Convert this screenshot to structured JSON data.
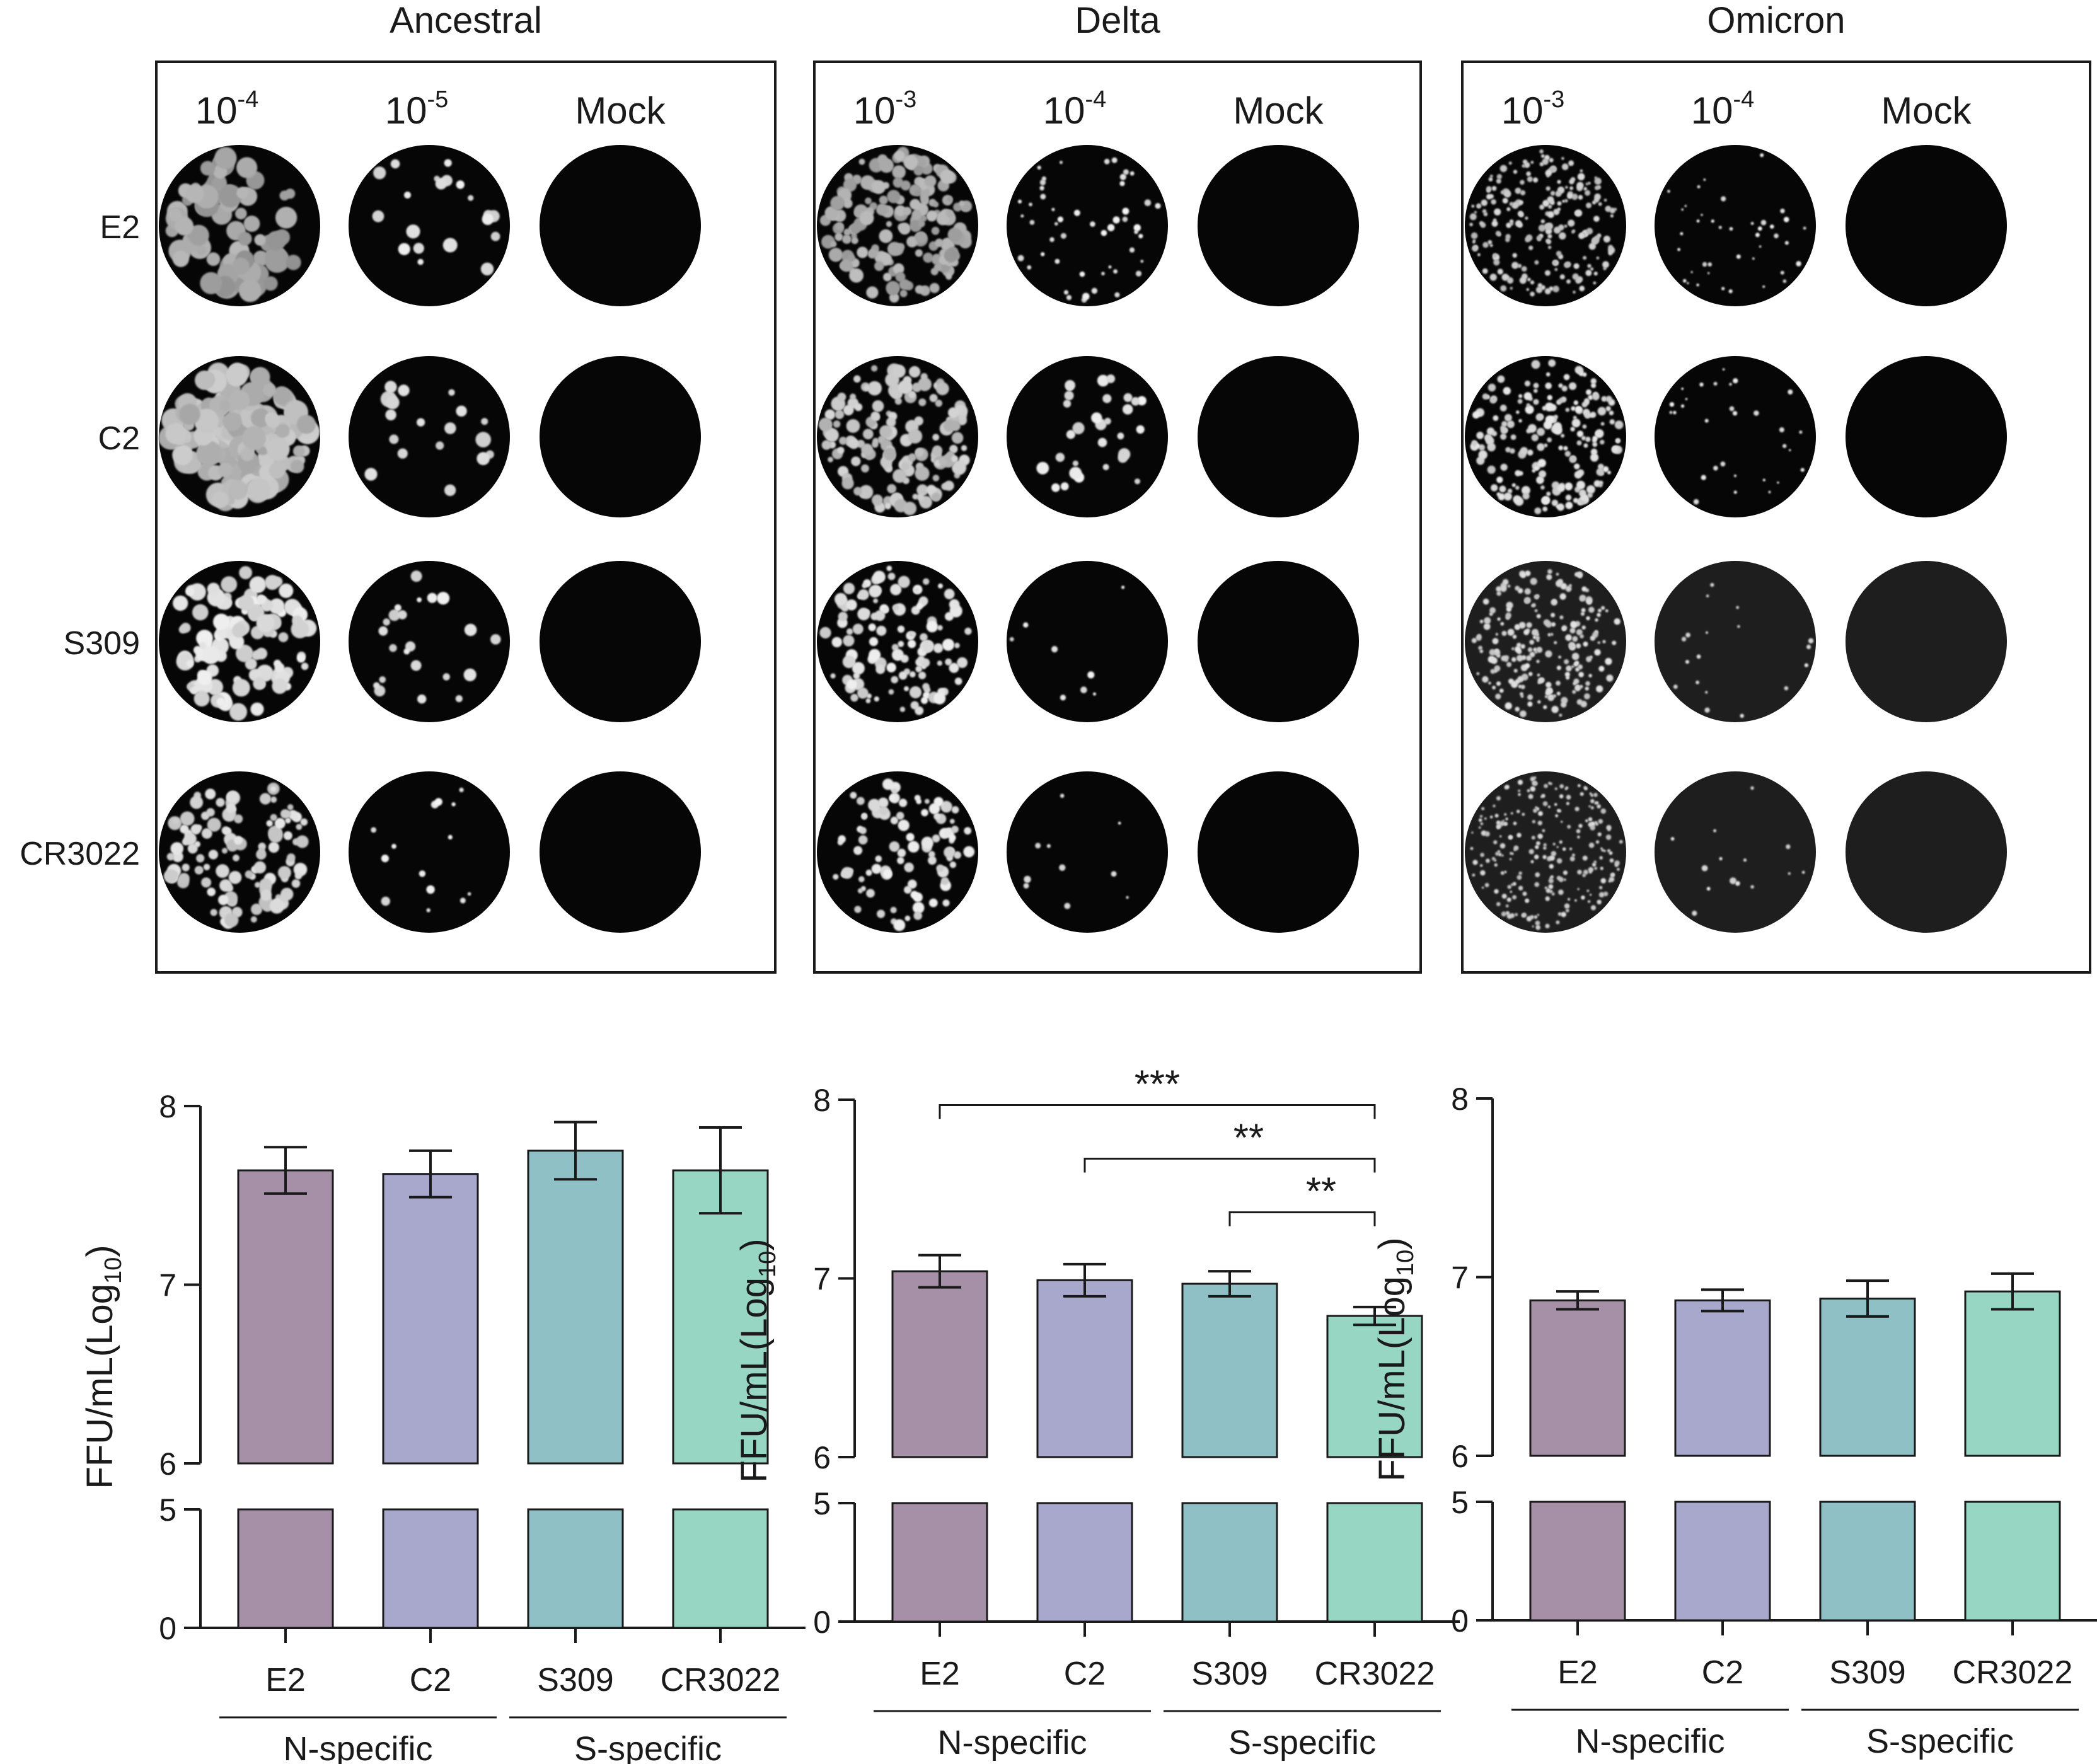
{
  "antibodies": [
    "E2",
    "C2",
    "S309",
    "CR3022"
  ],
  "colors": {
    "E2": "#a690a8",
    "C2": "#a8a8cc",
    "S309": "#8fc0c6",
    "CR3022": "#96d6c2",
    "well_background": "#060606",
    "axis": "#1a1a1a"
  },
  "wells": {
    "mock_label": "Mock",
    "panels": [
      {
        "variant": "Ancestral",
        "dilutions": [
          {
            "base": "10",
            "exp": "-4"
          },
          {
            "base": "10",
            "exp": "-5"
          }
        ],
        "foci": {
          "E2": [
            {
              "count": 70,
              "size": 14,
              "tone": 185
            },
            {
              "count": 20,
              "size": 8,
              "tone": 240
            }
          ],
          "C2": [
            {
              "count": 140,
              "size": 14,
              "tone": 205
            },
            {
              "count": 18,
              "size": 9,
              "tone": 240
            }
          ],
          "S309": [
            {
              "count": 110,
              "size": 10,
              "tone": 240
            },
            {
              "count": 22,
              "size": 7,
              "tone": 240
            }
          ],
          "CR3022": [
            {
              "count": 115,
              "size": 8,
              "tone": 230
            },
            {
              "count": 14,
              "size": 5,
              "tone": 245
            }
          ]
        }
      },
      {
        "variant": "Delta",
        "dilutions": [
          {
            "base": "10",
            "exp": "-3"
          },
          {
            "base": "10",
            "exp": "-4"
          }
        ],
        "foci": {
          "E2": [
            {
              "count": 170,
              "size": 8,
              "tone": 190
            },
            {
              "count": 50,
              "size": 4,
              "tone": 245
            }
          ],
          "C2": [
            {
              "count": 150,
              "size": 8,
              "tone": 215
            },
            {
              "count": 30,
              "size": 7,
              "tone": 245
            }
          ],
          "S309": [
            {
              "count": 120,
              "size": 7,
              "tone": 240
            },
            {
              "count": 8,
              "size": 4,
              "tone": 245
            }
          ],
          "CR3022": [
            {
              "count": 90,
              "size": 7,
              "tone": 240
            },
            {
              "count": 10,
              "size": 4,
              "tone": 245
            }
          ]
        }
      },
      {
        "variant": "Omicron",
        "dilutions": [
          {
            "base": "10",
            "exp": "-3"
          },
          {
            "base": "10",
            "exp": "-4"
          }
        ],
        "foci": {
          "E2": [
            {
              "count": 220,
              "size": 4,
              "tone": 220
            },
            {
              "count": 40,
              "size": 3,
              "tone": 245
            }
          ],
          "C2": [
            {
              "count": 200,
              "size": 5,
              "tone": 235
            },
            {
              "count": 30,
              "size": 3,
              "tone": 245
            }
          ],
          "S309": [
            {
              "count": 220,
              "size": 4,
              "tone": 230
            },
            {
              "count": 18,
              "size": 3,
              "tone": 235
            }
          ],
          "CR3022": [
            {
              "count": 240,
              "size": 3,
              "tone": 225
            },
            {
              "count": 14,
              "size": 4,
              "tone": 240
            }
          ]
        }
      }
    ]
  },
  "chart_data": [
    {
      "type": "bar",
      "variant": "Ancestral",
      "categories": [
        "E2",
        "C2",
        "S309",
        "CR3022"
      ],
      "values": [
        7.64,
        7.62,
        7.75,
        7.64
      ],
      "error": [
        0.13,
        0.13,
        0.16,
        0.24
      ],
      "ylabel_main": "FFU/mL(Log",
      "ylabel_sub": "10",
      "ylabel_tail": ")",
      "ylim": [
        0,
        8
      ],
      "axis_break": [
        5,
        6
      ],
      "yticks": [
        0,
        5,
        6,
        7,
        8
      ],
      "groups": [
        {
          "label": "N-specific",
          "members": [
            "E2",
            "C2"
          ]
        },
        {
          "label": "S-specific",
          "members": [
            "S309",
            "CR3022"
          ]
        }
      ],
      "significance": []
    },
    {
      "type": "bar",
      "variant": "Delta",
      "categories": [
        "E2",
        "C2",
        "S309",
        "CR3022"
      ],
      "values": [
        7.04,
        6.99,
        6.97,
        6.79
      ],
      "error": [
        0.09,
        0.09,
        0.07,
        0.05
      ],
      "ylabel_main": "FFU/mL(Log",
      "ylabel_sub": "10",
      "ylabel_tail": ")",
      "ylim": [
        0,
        8
      ],
      "axis_break": [
        5,
        6
      ],
      "yticks": [
        0,
        5,
        6,
        7,
        8
      ],
      "groups": [
        {
          "label": "N-specific",
          "members": [
            "E2",
            "C2"
          ]
        },
        {
          "label": "S-specific",
          "members": [
            "S309",
            "CR3022"
          ]
        }
      ],
      "significance": [
        {
          "from": "E2",
          "to": "CR3022",
          "label": "***"
        },
        {
          "from": "C2",
          "to": "CR3022",
          "label": "**"
        },
        {
          "from": "S309",
          "to": "CR3022",
          "label": "**"
        }
      ]
    },
    {
      "type": "bar",
      "variant": "Omicron",
      "categories": [
        "E2",
        "C2",
        "S309",
        "CR3022"
      ],
      "values": [
        6.87,
        6.87,
        6.88,
        6.92
      ],
      "error": [
        0.05,
        0.06,
        0.1,
        0.1
      ],
      "ylabel_main": "FFU/mL(Log",
      "ylabel_sub": "10",
      "ylabel_tail": ")",
      "ylim": [
        0,
        8
      ],
      "axis_break": [
        5,
        6
      ],
      "yticks": [
        0,
        5,
        6,
        7,
        8
      ],
      "groups": [
        {
          "label": "N-specific",
          "members": [
            "E2",
            "C2"
          ]
        },
        {
          "label": "S-specific",
          "members": [
            "S309",
            "CR3022"
          ]
        }
      ],
      "significance": []
    }
  ]
}
